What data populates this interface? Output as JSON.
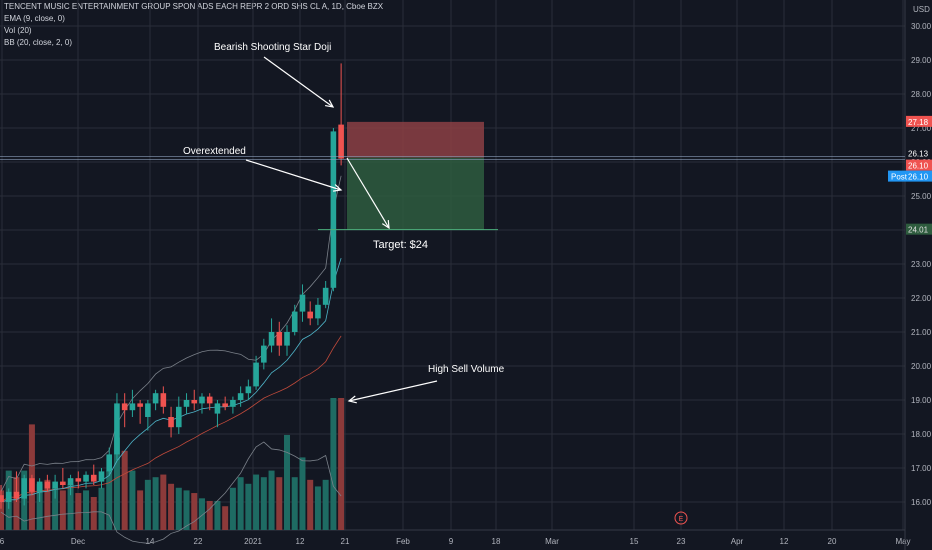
{
  "header": {
    "symbol_line": "TENCENT MUSIC ENTERTAINMENT GROUP SPON ADS EACH REPR 2 ORD SHS CL A, 1D, Cboe BZX",
    "ema_line": "EMA (9, close, 0)",
    "vol_line": "Vol (20)",
    "bb_line": "BB (20, close, 2, 0)"
  },
  "colors": {
    "background": "#131722",
    "grid": "#2a2e39",
    "up": "#26a69a",
    "down": "#ef5350",
    "vol_up": "#1e6b63",
    "vol_down": "#8c3a3a",
    "stop_zone": "#8c3f44",
    "target_zone": "#2e5c3e",
    "post_badge": "#2196f3"
  },
  "chart_data": {
    "type": "candlestick",
    "currency": "USD",
    "ylim": [
      15.3,
      30.3
    ],
    "y_ticks": [
      "16.00",
      "17.00",
      "18.00",
      "19.00",
      "20.00",
      "21.00",
      "22.00",
      "23.00",
      "24.00",
      "25.00",
      "26.00",
      "27.00",
      "28.00",
      "29.00",
      "30.00"
    ],
    "x_ticks": [
      "6",
      "Dec",
      "14",
      "22",
      "2021",
      "12",
      "21",
      "Feb",
      "9",
      "18",
      "Mar",
      "15",
      "23",
      "Apr",
      "12",
      "20",
      "May"
    ],
    "candles": [
      {
        "o": 16.2,
        "h": 16.5,
        "l": 15.8,
        "c": 16.0,
        "v": 0.3
      },
      {
        "o": 16.0,
        "h": 16.4,
        "l": 15.8,
        "c": 16.3,
        "v": 0.45
      },
      {
        "o": 16.3,
        "h": 16.9,
        "l": 16.0,
        "c": 16.1,
        "v": 0.4
      },
      {
        "o": 16.1,
        "h": 16.8,
        "l": 15.9,
        "c": 16.7,
        "v": 0.45
      },
      {
        "o": 16.7,
        "h": 16.8,
        "l": 16.2,
        "c": 16.3,
        "v": 0.8
      },
      {
        "o": 16.3,
        "h": 16.7,
        "l": 16.0,
        "c": 16.6,
        "v": 0.35
      },
      {
        "o": 16.6,
        "h": 16.8,
        "l": 16.3,
        "c": 16.4,
        "v": 0.38
      },
      {
        "o": 16.4,
        "h": 16.8,
        "l": 16.1,
        "c": 16.6,
        "v": 0.32
      },
      {
        "o": 16.6,
        "h": 17.0,
        "l": 16.4,
        "c": 16.5,
        "v": 0.3
      },
      {
        "o": 16.5,
        "h": 16.8,
        "l": 16.2,
        "c": 16.7,
        "v": 0.35
      },
      {
        "o": 16.7,
        "h": 16.9,
        "l": 16.4,
        "c": 16.6,
        "v": 0.28
      },
      {
        "o": 16.6,
        "h": 16.9,
        "l": 16.4,
        "c": 16.8,
        "v": 0.3
      },
      {
        "o": 16.8,
        "h": 17.1,
        "l": 16.5,
        "c": 16.6,
        "v": 0.25
      },
      {
        "o": 16.6,
        "h": 17.0,
        "l": 16.4,
        "c": 16.9,
        "v": 0.32
      },
      {
        "o": 16.9,
        "h": 17.6,
        "l": 16.8,
        "c": 17.4,
        "v": 0.45
      },
      {
        "o": 17.4,
        "h": 19.2,
        "l": 17.2,
        "c": 18.9,
        "v": 0.7
      },
      {
        "o": 18.9,
        "h": 19.2,
        "l": 18.2,
        "c": 18.7,
        "v": 0.6
      },
      {
        "o": 18.7,
        "h": 19.3,
        "l": 18.5,
        "c": 18.9,
        "v": 0.45
      },
      {
        "o": 18.9,
        "h": 19.0,
        "l": 18.3,
        "c": 18.8,
        "v": 0.3
      },
      {
        "o": 18.5,
        "h": 19.0,
        "l": 18.1,
        "c": 18.9,
        "v": 0.38
      },
      {
        "o": 18.9,
        "h": 19.3,
        "l": 18.7,
        "c": 19.2,
        "v": 0.4
      },
      {
        "o": 19.2,
        "h": 19.4,
        "l": 18.6,
        "c": 18.8,
        "v": 0.42
      },
      {
        "o": 18.5,
        "h": 18.8,
        "l": 17.9,
        "c": 18.2,
        "v": 0.35
      },
      {
        "o": 18.2,
        "h": 19.1,
        "l": 18.0,
        "c": 18.8,
        "v": 0.32
      },
      {
        "o": 18.8,
        "h": 19.2,
        "l": 18.6,
        "c": 19.0,
        "v": 0.3
      },
      {
        "o": 19.0,
        "h": 19.3,
        "l": 18.7,
        "c": 18.9,
        "v": 0.28
      },
      {
        "o": 18.9,
        "h": 19.2,
        "l": 18.6,
        "c": 19.1,
        "v": 0.24
      },
      {
        "o": 19.1,
        "h": 19.2,
        "l": 18.7,
        "c": 18.9,
        "v": 0.22
      },
      {
        "o": 18.6,
        "h": 19.0,
        "l": 18.2,
        "c": 18.9,
        "v": 0.22
      },
      {
        "o": 18.9,
        "h": 19.1,
        "l": 18.7,
        "c": 18.8,
        "v": 0.18
      },
      {
        "o": 18.8,
        "h": 19.1,
        "l": 18.6,
        "c": 19.0,
        "v": 0.32
      },
      {
        "o": 19.0,
        "h": 19.4,
        "l": 18.8,
        "c": 19.2,
        "v": 0.4
      },
      {
        "o": 19.2,
        "h": 19.6,
        "l": 19.0,
        "c": 19.4,
        "v": 0.35
      },
      {
        "o": 19.4,
        "h": 20.3,
        "l": 19.3,
        "c": 20.1,
        "v": 0.42
      },
      {
        "o": 20.1,
        "h": 20.8,
        "l": 19.9,
        "c": 20.6,
        "v": 0.4
      },
      {
        "o": 20.6,
        "h": 21.4,
        "l": 20.4,
        "c": 21.0,
        "v": 0.45
      },
      {
        "o": 21.0,
        "h": 21.3,
        "l": 20.3,
        "c": 20.6,
        "v": 0.4
      },
      {
        "o": 20.6,
        "h": 21.2,
        "l": 20.3,
        "c": 21.0,
        "v": 0.72
      },
      {
        "o": 21.0,
        "h": 21.8,
        "l": 20.9,
        "c": 21.6,
        "v": 0.4
      },
      {
        "o": 21.6,
        "h": 22.4,
        "l": 21.3,
        "c": 22.1,
        "v": 0.55
      },
      {
        "o": 21.6,
        "h": 21.9,
        "l": 21.2,
        "c": 21.4,
        "v": 0.38
      },
      {
        "o": 21.4,
        "h": 22.0,
        "l": 21.2,
        "c": 21.8,
        "v": 0.33
      },
      {
        "o": 21.8,
        "h": 22.5,
        "l": 21.7,
        "c": 22.3,
        "v": 0.38
      },
      {
        "o": 22.3,
        "h": 27.0,
        "l": 22.2,
        "c": 26.9,
        "v": 1.0
      },
      {
        "o": 27.1,
        "h": 28.9,
        "l": 25.9,
        "c": 26.1,
        "v": 1.0
      }
    ],
    "levels": {
      "entry": 26.13,
      "stop": 27.18,
      "target": 24.01,
      "last_close": 26.1,
      "post_market": 26.1
    },
    "price_labels": [
      "27.18",
      "26.13",
      "26.10",
      "26.10",
      "24.01"
    ],
    "post_label": "Post",
    "earnings_marker": "E",
    "earnings_x_label": "23",
    "annotations": [
      {
        "id": "shooting-star",
        "text": "Bearish Shooting Star Doji"
      },
      {
        "id": "overextended",
        "text": "Overextended"
      },
      {
        "id": "target",
        "text": "Target: $24"
      },
      {
        "id": "sell-volume",
        "text": "High Sell Volume"
      }
    ]
  }
}
